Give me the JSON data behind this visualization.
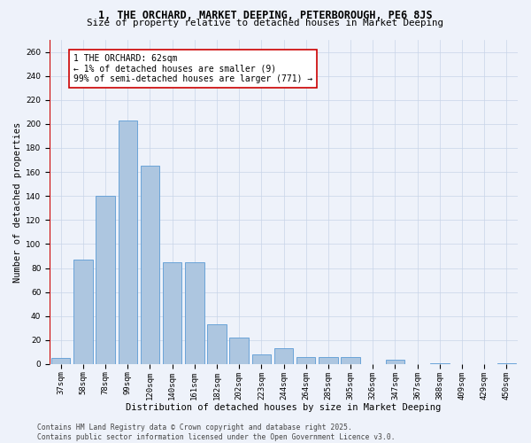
{
  "title_line1": "1, THE ORCHARD, MARKET DEEPING, PETERBOROUGH, PE6 8JS",
  "title_line2": "Size of property relative to detached houses in Market Deeping",
  "xlabel": "Distribution of detached houses by size in Market Deeping",
  "ylabel": "Number of detached properties",
  "categories": [
    "37sqm",
    "58sqm",
    "78sqm",
    "99sqm",
    "120sqm",
    "140sqm",
    "161sqm",
    "182sqm",
    "202sqm",
    "223sqm",
    "244sqm",
    "264sqm",
    "285sqm",
    "305sqm",
    "326sqm",
    "347sqm",
    "367sqm",
    "388sqm",
    "409sqm",
    "429sqm",
    "450sqm"
  ],
  "values": [
    5,
    87,
    140,
    203,
    165,
    85,
    85,
    33,
    22,
    8,
    13,
    6,
    6,
    6,
    0,
    4,
    0,
    1,
    0,
    0,
    1
  ],
  "bar_color": "#adc6e0",
  "bar_edge_color": "#5b9bd5",
  "vline_color": "#cc0000",
  "vline_x": 0.5,
  "annotation_text": "1 THE ORCHARD: 62sqm\n← 1% of detached houses are smaller (9)\n99% of semi-detached houses are larger (771) →",
  "annotation_box_facecolor": "#ffffff",
  "annotation_box_edgecolor": "#cc0000",
  "ylim": [
    0,
    270
  ],
  "yticks": [
    0,
    20,
    40,
    60,
    80,
    100,
    120,
    140,
    160,
    180,
    200,
    220,
    240,
    260
  ],
  "footer_text": "Contains HM Land Registry data © Crown copyright and database right 2025.\nContains public sector information licensed under the Open Government Licence v3.0.",
  "background_color": "#eef2fa",
  "grid_color": "#c8d4e8",
  "title_fontsize": 8.5,
  "subtitle_fontsize": 7.8,
  "axis_label_fontsize": 7.5,
  "tick_fontsize": 6.5,
  "footer_fontsize": 5.8,
  "annotation_fontsize": 7.0
}
